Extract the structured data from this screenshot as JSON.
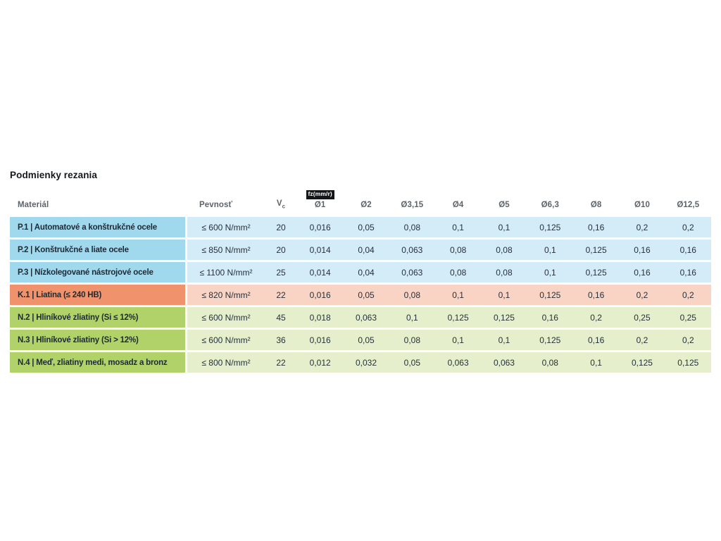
{
  "page": {
    "title": "Podmienky rezania"
  },
  "table": {
    "headers": {
      "material": "Materiál",
      "pevnost": "Pevnosť",
      "vc_main": "V",
      "vc_sub": "c",
      "fz_badge": "fz(mm/r)",
      "diameters": [
        "Ø1",
        "Ø2",
        "Ø3,15",
        "Ø4",
        "Ø5",
        "Ø6,3",
        "Ø8",
        "Ø10",
        "Ø12,5"
      ]
    },
    "colors": {
      "P": {
        "label": "#a0d8ee",
        "body": "#d3ecf8"
      },
      "K": {
        "label": "#f0926b",
        "body": "#f9d3c3"
      },
      "N": {
        "label": "#b1d269",
        "body": "#e5efcb"
      }
    },
    "rows": [
      {
        "group": "P",
        "material": "P.1 | Automatové a konštrukčné ocele",
        "pevnost": "≤ 600 N/mm²",
        "vc": "20",
        "fz": [
          "0,016",
          "0,05",
          "0,08",
          "0,1",
          "0,1",
          "0,125",
          "0,16",
          "0,2",
          "0,2"
        ]
      },
      {
        "group": "P",
        "material": "P.2 | Konštrukčné a liate ocele",
        "pevnost": "≤ 850 N/mm²",
        "vc": "20",
        "fz": [
          "0,014",
          "0,04",
          "0,063",
          "0,08",
          "0,08",
          "0,1",
          "0,125",
          "0,16",
          "0,16"
        ]
      },
      {
        "group": "P",
        "material": "P.3 | Nízkolegované nástrojové ocele",
        "pevnost": "≤ 1100 N/mm²",
        "vc": "25",
        "fz": [
          "0,014",
          "0,04",
          "0,063",
          "0,08",
          "0,08",
          "0,1",
          "0,125",
          "0,16",
          "0,16"
        ]
      },
      {
        "group": "K",
        "material": "K.1 | Liatina (≤ 240 HB)",
        "pevnost": "≤ 820 N/mm²",
        "vc": "22",
        "fz": [
          "0,016",
          "0,05",
          "0,08",
          "0,1",
          "0,1",
          "0,125",
          "0,16",
          "0,2",
          "0,2"
        ]
      },
      {
        "group": "N",
        "material": "N.2 | Hliníkové zliatiny (Si ≤ 12%)",
        "pevnost": "≤ 600 N/mm²",
        "vc": "45",
        "fz": [
          "0,018",
          "0,063",
          "0,1",
          "0,125",
          "0,125",
          "0,16",
          "0,2",
          "0,25",
          "0,25"
        ]
      },
      {
        "group": "N",
        "material": "N.3 | Hliníkové zliatiny (Si > 12%)",
        "pevnost": "≤ 600 N/mm²",
        "vc": "36",
        "fz": [
          "0,016",
          "0,05",
          "0,08",
          "0,1",
          "0,1",
          "0,125",
          "0,16",
          "0,2",
          "0,2"
        ]
      },
      {
        "group": "N",
        "material": "N.4 | Meď, zliatiny medi, mosadz a bronz",
        "pevnost": "≤ 800 N/mm²",
        "vc": "22",
        "fz": [
          "0,012",
          "0,032",
          "0,05",
          "0,063",
          "0,063",
          "0,08",
          "0,1",
          "0,125",
          "0,125"
        ]
      }
    ]
  }
}
